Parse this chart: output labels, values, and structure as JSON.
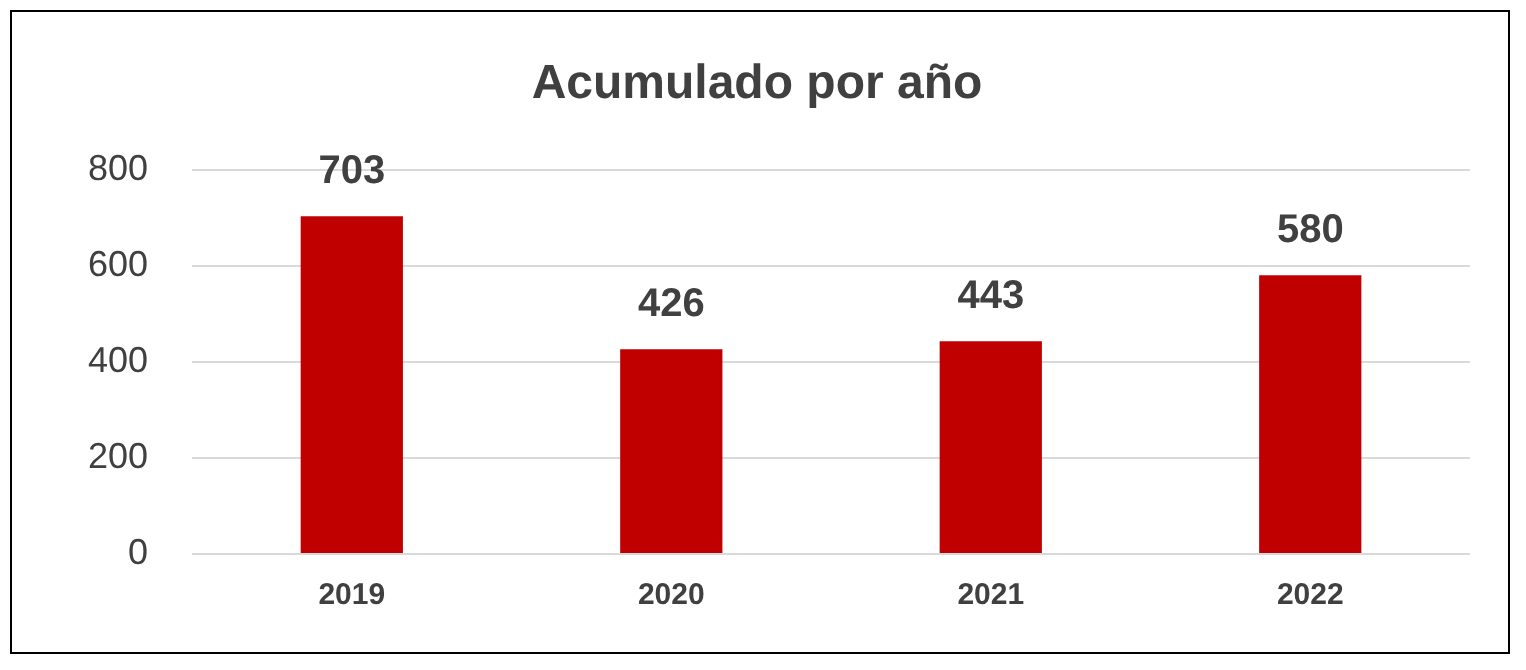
{
  "chart_data": {
    "type": "bar",
    "title": "Acumulado por año",
    "categories": [
      "2019",
      "2020",
      "2021",
      "2022"
    ],
    "values": [
      703,
      426,
      443,
      580
    ],
    "color": "#c00000",
    "ylim": [
      0,
      800
    ],
    "yticks": [
      0,
      200,
      400,
      600,
      800
    ],
    "grid": "y",
    "data_labels": true
  }
}
